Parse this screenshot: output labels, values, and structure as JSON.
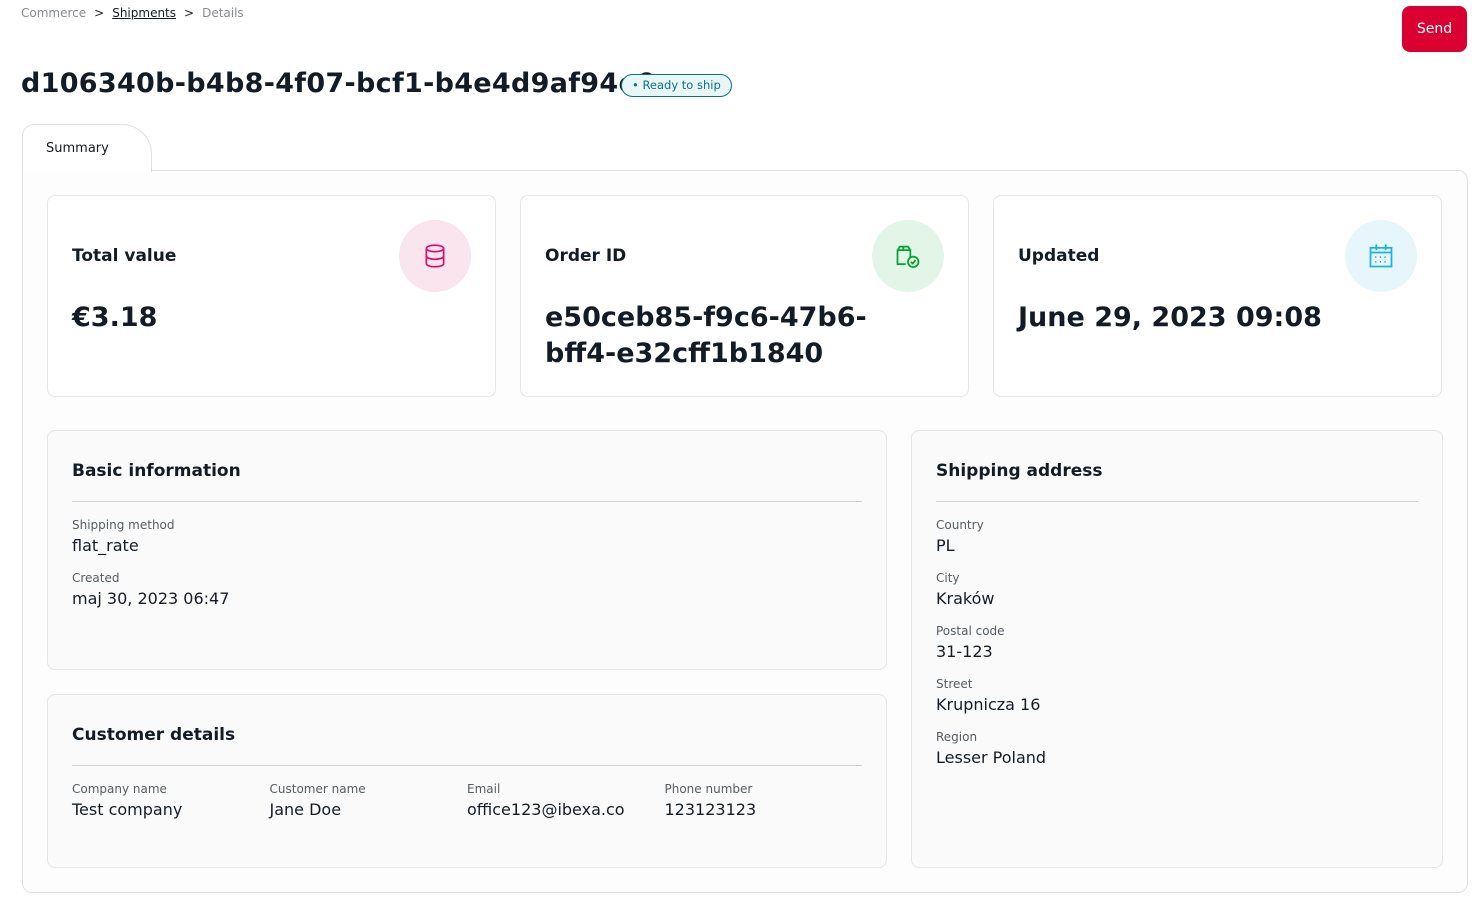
{
  "breadcrumb": {
    "items": [
      "Commerce",
      "Shipments",
      "Details"
    ],
    "sep": ">"
  },
  "header": {
    "title": "d106340b-b4b8-4f07-bcf1-b4e4d9af94e0",
    "status": "• Ready to ship",
    "send_label": "Send"
  },
  "tabs": [
    {
      "label": "Summary"
    }
  ],
  "cards": [
    {
      "title": "Total value",
      "value": "€3.18",
      "icon": "database-icon",
      "color": "#db0a6b",
      "bg": "#fae4ee"
    },
    {
      "title": "Order ID",
      "value": "e50ceb85-f9c6-47b6-bff4-e32cff1b1840",
      "icon": "package-check-icon",
      "color": "#00a42e",
      "bg": "#e2f5e7"
    },
    {
      "title": "Updated",
      "value": "June 29, 2023 09:08",
      "icon": "calendar-icon",
      "color": "#1bb3d6",
      "bg": "#e6f6fb"
    }
  ],
  "basic": {
    "title": "Basic information",
    "fields": [
      {
        "label": "Shipping method",
        "value": "flat_rate"
      },
      {
        "label": "Created",
        "value": "maj 30, 2023 06:47"
      }
    ]
  },
  "customer": {
    "title": "Customer details",
    "fields": [
      {
        "label": "Company name",
        "value": "Test company"
      },
      {
        "label": "Customer name",
        "value": "Jane Doe"
      },
      {
        "label": "Email",
        "value": "office123@ibexa.co"
      },
      {
        "label": "Phone number",
        "value": "123123123"
      }
    ]
  },
  "address": {
    "title": "Shipping address",
    "fields": [
      {
        "label": "Country",
        "value": "PL"
      },
      {
        "label": "City",
        "value": "Kraków"
      },
      {
        "label": "Postal code",
        "value": "31-123"
      },
      {
        "label": "Street",
        "value": "Krupnicza 16"
      },
      {
        "label": "Region",
        "value": "Lesser Poland"
      }
    ]
  }
}
